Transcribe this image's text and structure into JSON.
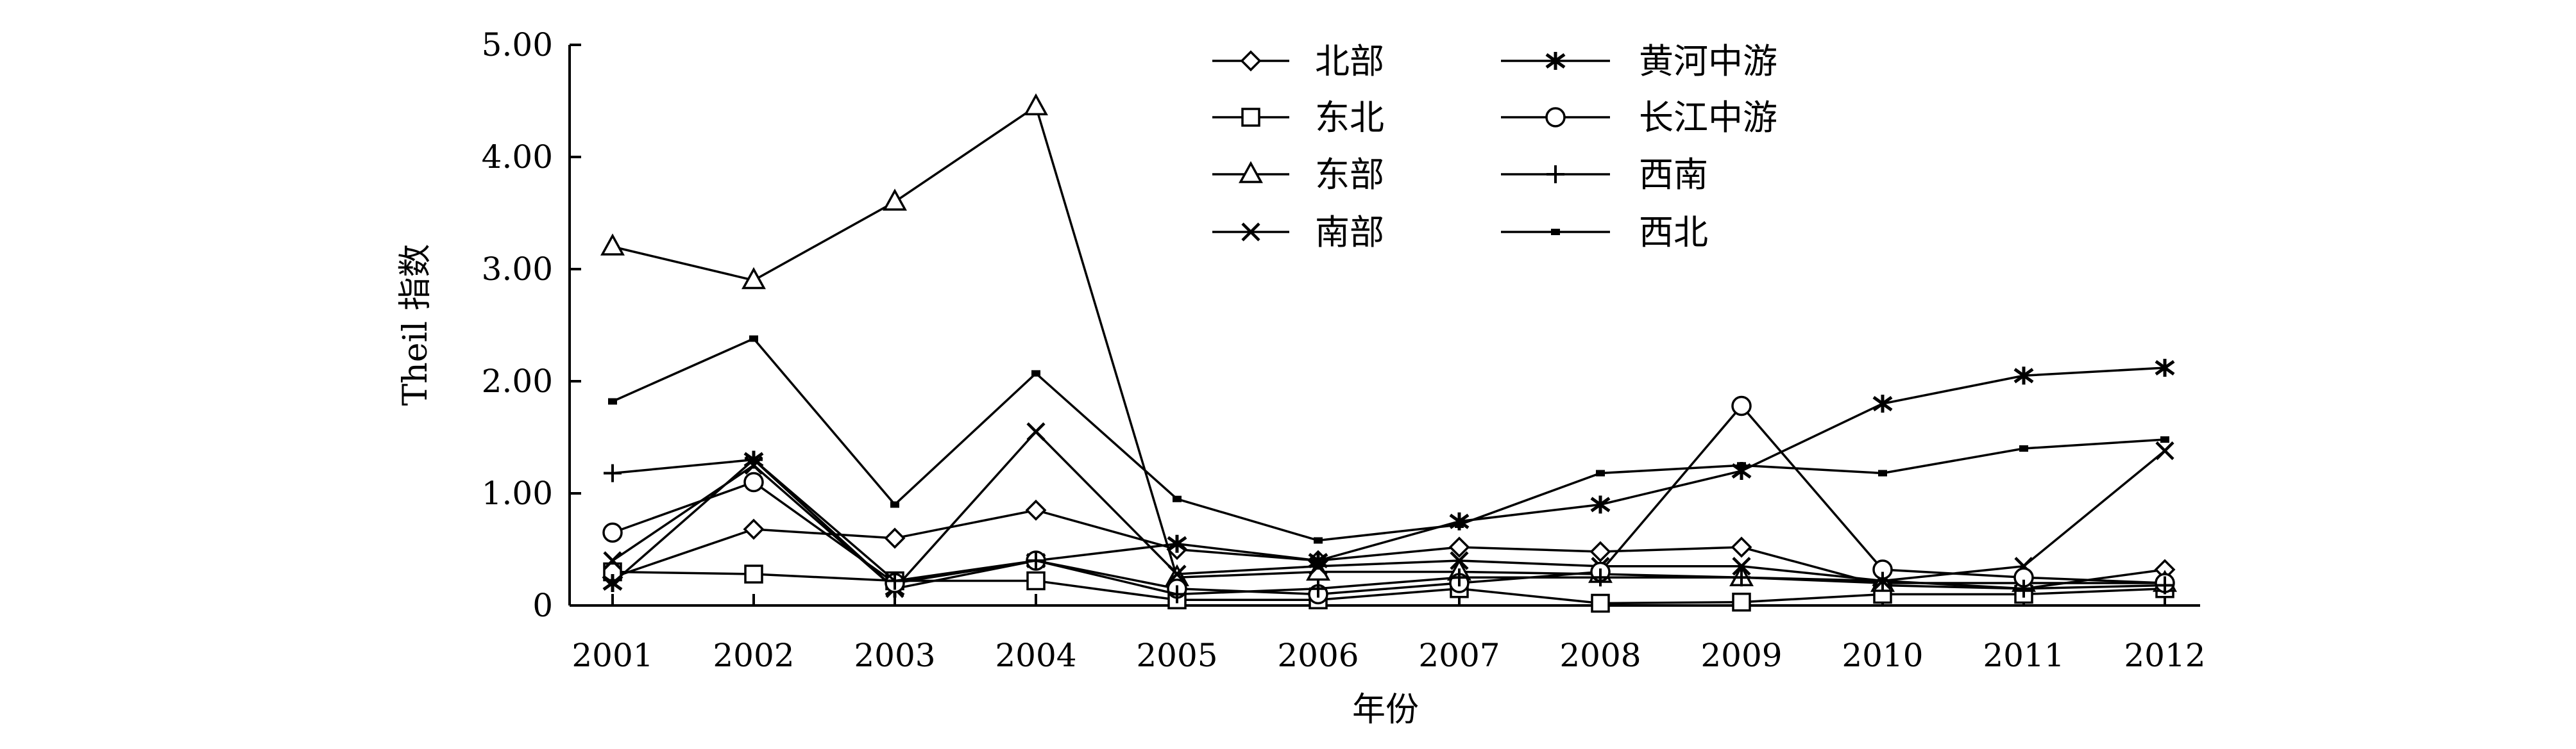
{
  "chart_data": {
    "type": "line",
    "title": "",
    "xlabel": "年份",
    "ylabel": "Theil 指数",
    "x": [
      "2001",
      "2002",
      "2003",
      "2004",
      "2005",
      "2006",
      "2007",
      "2008",
      "2009",
      "2010",
      "2011",
      "2012"
    ],
    "ylim": [
      0,
      5
    ],
    "y_ticks": [
      "0",
      "1.00",
      "2.00",
      "3.00",
      "4.00",
      "5.00"
    ],
    "grid": false,
    "legend_position": "top-center",
    "series": [
      {
        "name": "北部",
        "marker": "diamond-open",
        "values": [
          0.25,
          0.68,
          0.6,
          0.85,
          0.5,
          0.4,
          0.52,
          0.48,
          0.52,
          0.18,
          0.15,
          0.32
        ]
      },
      {
        "name": "东北",
        "marker": "square-open",
        "values": [
          0.3,
          0.28,
          0.22,
          0.22,
          0.05,
          0.05,
          0.15,
          0.02,
          0.03,
          0.1,
          0.1,
          0.15
        ]
      },
      {
        "name": "东部",
        "marker": "triangle-open",
        "values": [
          3.2,
          2.9,
          3.6,
          4.45,
          0.25,
          0.3,
          0.3,
          0.28,
          0.25,
          0.2,
          0.2,
          0.2
        ]
      },
      {
        "name": "南部",
        "marker": "x",
        "values": [
          0.4,
          1.25,
          0.15,
          1.55,
          0.28,
          0.35,
          0.4,
          0.35,
          0.35,
          0.22,
          0.35,
          1.38
        ]
      },
      {
        "name": "黄河中游",
        "marker": "asterisk",
        "values": [
          0.2,
          1.3,
          0.15,
          0.4,
          0.55,
          0.4,
          0.75,
          0.9,
          1.2,
          1.8,
          2.05,
          2.12
        ]
      },
      {
        "name": "长江中游",
        "marker": "circle-open",
        "values": [
          0.65,
          1.1,
          0.2,
          0.4,
          0.15,
          0.1,
          0.2,
          0.3,
          1.78,
          0.32,
          0.25,
          0.2
        ]
      },
      {
        "name": "西南",
        "marker": "plus",
        "values": [
          1.18,
          1.3,
          0.22,
          0.4,
          0.1,
          0.15,
          0.25,
          0.25,
          0.25,
          0.22,
          0.15,
          0.18
        ]
      },
      {
        "name": "西北",
        "marker": "dot",
        "values": [
          1.82,
          2.38,
          0.9,
          2.07,
          0.95,
          0.58,
          0.72,
          1.18,
          1.25,
          1.18,
          1.4,
          1.48
        ]
      }
    ]
  }
}
